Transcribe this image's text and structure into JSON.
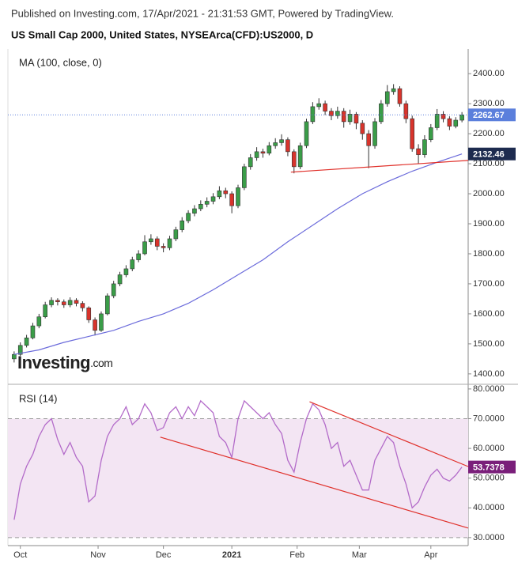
{
  "header": {
    "source": "Published on Investing.com, 17/Apr/2021 - 21:31:53 GMT, Powered by TradingView.",
    "title": "US Small Cap 2000, United States, NYSEArca(CFD):US2000, D"
  },
  "logo": "Investing",
  "logo_suffix": ".com",
  "chart_data": [
    {
      "type": "candlestick",
      "label": "MA (100, close, 0)",
      "x": [
        0,
        2,
        4,
        6,
        8,
        10,
        12,
        14,
        16,
        18,
        20,
        22,
        24,
        26,
        28,
        30,
        32,
        34,
        36,
        38,
        40,
        42,
        44,
        46,
        48,
        50,
        52,
        54,
        56,
        58,
        60,
        62,
        64,
        66,
        68,
        70,
        72,
        74,
        76,
        78,
        80,
        82,
        84,
        86,
        88,
        90,
        92,
        94,
        96,
        98,
        100,
        102,
        104,
        106,
        108,
        110,
        112,
        114,
        116,
        118,
        120,
        122,
        124,
        126,
        128,
        130,
        132,
        134,
        136,
        138,
        140,
        142,
        144
      ],
      "open": [
        1450,
        1465,
        1495,
        1520,
        1560,
        1590,
        1630,
        1645,
        1640,
        1630,
        1645,
        1635,
        1620,
        1580,
        1545,
        1600,
        1660,
        1700,
        1730,
        1750,
        1780,
        1800,
        1840,
        1850,
        1825,
        1820,
        1850,
        1880,
        1910,
        1935,
        1950,
        1965,
        1975,
        1990,
        2010,
        2000,
        1960,
        2020,
        2090,
        2120,
        2140,
        2135,
        2160,
        2170,
        2180,
        2140,
        2090,
        2160,
        2240,
        2290,
        2300,
        2275,
        2260,
        2275,
        2240,
        2265,
        2235,
        2200,
        2160,
        2240,
        2300,
        2340,
        2350,
        2300,
        2250,
        2150,
        2130,
        2180,
        2220,
        2265,
        2250,
        2225,
        2245
      ],
      "high": [
        1475,
        1505,
        1530,
        1570,
        1600,
        1640,
        1655,
        1652,
        1648,
        1655,
        1652,
        1642,
        1625,
        1588,
        1608,
        1668,
        1710,
        1740,
        1762,
        1790,
        1812,
        1862,
        1865,
        1858,
        1835,
        1860,
        1890,
        1922,
        1945,
        1962,
        1978,
        1988,
        2002,
        2025,
        2020,
        2008,
        2030,
        2100,
        2132,
        2155,
        2150,
        2172,
        2185,
        2198,
        2188,
        2148,
        2170,
        2250,
        2305,
        2318,
        2310,
        2285,
        2290,
        2285,
        2280,
        2272,
        2245,
        2212,
        2252,
        2312,
        2362,
        2365,
        2358,
        2310,
        2260,
        2165,
        2195,
        2232,
        2282,
        2275,
        2258,
        2255,
        2272
      ],
      "low": [
        1438,
        1460,
        1488,
        1515,
        1552,
        1585,
        1622,
        1628,
        1620,
        1622,
        1625,
        1608,
        1570,
        1528,
        1540,
        1595,
        1652,
        1692,
        1722,
        1742,
        1772,
        1795,
        1830,
        1812,
        1805,
        1812,
        1842,
        1872,
        1902,
        1925,
        1942,
        1955,
        1965,
        1982,
        1985,
        1935,
        1952,
        2012,
        2080,
        2110,
        2120,
        2128,
        2150,
        2160,
        2125,
        2068,
        2082,
        2152,
        2232,
        2280,
        2262,
        2245,
        2250,
        2220,
        2230,
        2215,
        2180,
        2085,
        2150,
        2232,
        2290,
        2330,
        2290,
        2235,
        2140,
        2100,
        2120,
        2172,
        2212,
        2238,
        2212,
        2218,
        2238
      ],
      "close": [
        1465,
        1495,
        1520,
        1560,
        1590,
        1630,
        1645,
        1640,
        1630,
        1645,
        1635,
        1620,
        1580,
        1545,
        1600,
        1660,
        1700,
        1730,
        1750,
        1780,
        1800,
        1840,
        1850,
        1825,
        1820,
        1850,
        1880,
        1910,
        1935,
        1950,
        1965,
        1975,
        1990,
        2010,
        2000,
        1960,
        2020,
        2090,
        2120,
        2140,
        2135,
        2160,
        2170,
        2180,
        2140,
        2090,
        2160,
        2240,
        2290,
        2300,
        2275,
        2260,
        2275,
        2240,
        2265,
        2235,
        2200,
        2160,
        2240,
        2300,
        2340,
        2350,
        2300,
        2250,
        2150,
        2130,
        2180,
        2220,
        2265,
        2250,
        2225,
        2245,
        2262.67
      ],
      "up_color": "#3a9d48",
      "down_color": "#d8342c",
      "close_label_color": "#5b7fdc",
      "last_line": true,
      "ma": {
        "x": [
          0,
          8,
          16,
          24,
          32,
          40,
          48,
          56,
          64,
          72,
          80,
          88,
          96,
          104,
          112,
          120,
          128,
          136,
          144
        ],
        "values": [
          1465,
          1480,
          1505,
          1525,
          1545,
          1575,
          1600,
          1635,
          1680,
          1730,
          1780,
          1840,
          1895,
          1950,
          2000,
          2040,
          2075,
          2105,
          2132.46
        ],
        "color": "#6b6bdb",
        "label_color": "#1d2b4f"
      },
      "trendlines": [
        {
          "x": [
            89,
            146
          ],
          "y": [
            2072,
            2111
          ]
        }
      ],
      "trend_color": "#e0302a",
      "xlim": [
        -2,
        146
      ],
      "ylim": [
        1368,
        2482
      ],
      "yticks": [
        {
          "value": 1400,
          "label": "1400.00"
        },
        {
          "value": 1500,
          "label": "1500.00"
        },
        {
          "value": 1600,
          "label": "1600.00"
        },
        {
          "value": 1700,
          "label": "1700.00"
        },
        {
          "value": 1800,
          "label": "1800.00"
        },
        {
          "value": 1900,
          "label": "1900.00"
        },
        {
          "value": 2000,
          "label": "2000.00"
        },
        {
          "value": 2100,
          "label": "2100.00"
        },
        {
          "value": 2200,
          "label": "2200.00"
        },
        {
          "value": 2300,
          "label": "2300.00"
        },
        {
          "value": 2400,
          "label": "2400.00"
        }
      ]
    },
    {
      "type": "line",
      "label": "RSI (14)",
      "color": "#b36bc9",
      "label_color": "#7a1f7a",
      "x": [
        0,
        2,
        4,
        6,
        8,
        10,
        12,
        14,
        16,
        18,
        20,
        22,
        24,
        26,
        28,
        30,
        32,
        34,
        36,
        38,
        40,
        42,
        44,
        46,
        48,
        50,
        52,
        54,
        56,
        58,
        60,
        62,
        64,
        66,
        68,
        70,
        72,
        74,
        76,
        78,
        80,
        82,
        84,
        86,
        88,
        90,
        92,
        94,
        96,
        98,
        100,
        102,
        104,
        106,
        108,
        110,
        112,
        114,
        116,
        118,
        120,
        122,
        124,
        126,
        128,
        130,
        132,
        134,
        136,
        138,
        140,
        142,
        144
      ],
      "values": [
        36,
        48,
        54,
        58,
        64,
        68,
        70,
        63,
        58,
        62,
        57,
        54,
        42,
        44,
        56,
        64,
        68,
        70,
        74,
        68,
        70,
        75,
        72,
        66,
        67,
        72,
        74,
        70,
        74,
        71,
        76,
        74,
        72,
        64,
        62,
        57,
        70,
        76,
        74,
        72,
        70,
        72,
        68,
        65,
        56,
        52,
        62,
        70,
        75,
        73,
        68,
        60,
        62,
        54,
        56,
        51,
        46,
        46,
        56,
        60,
        64,
        62,
        54,
        48,
        40,
        42,
        47,
        51,
        53,
        50,
        49,
        51,
        53.7378
      ],
      "band": [
        30,
        70
      ],
      "band_color": "#f3e5f3",
      "trendlines": [
        {
          "x": [
            95,
            146
          ],
          "y": [
            75.7,
            53.9
          ]
        },
        {
          "x": [
            47,
            146
          ],
          "y": [
            63.8,
            33.2
          ]
        }
      ],
      "trend_color": "#e0302a",
      "xlim": [
        -2,
        146
      ],
      "ylim": [
        27.3,
        81.3
      ],
      "yticks": [
        {
          "value": 30,
          "label": "30.0000"
        },
        {
          "value": 40,
          "label": "40.0000"
        },
        {
          "value": 50,
          "label": "50.0000"
        },
        {
          "value": 60,
          "label": "60.0000"
        },
        {
          "value": 70,
          "label": "70.0000"
        },
        {
          "value": 80,
          "label": "80.0000"
        }
      ],
      "xticks": [
        {
          "value": 2,
          "label": "Oct"
        },
        {
          "value": 27,
          "label": "Nov"
        },
        {
          "value": 48,
          "label": "Dec"
        },
        {
          "value": 70,
          "label": "2021"
        },
        {
          "value": 91,
          "label": "Feb"
        },
        {
          "value": 111,
          "label": "Mar"
        },
        {
          "value": 134,
          "label": "Apr"
        }
      ]
    }
  ]
}
